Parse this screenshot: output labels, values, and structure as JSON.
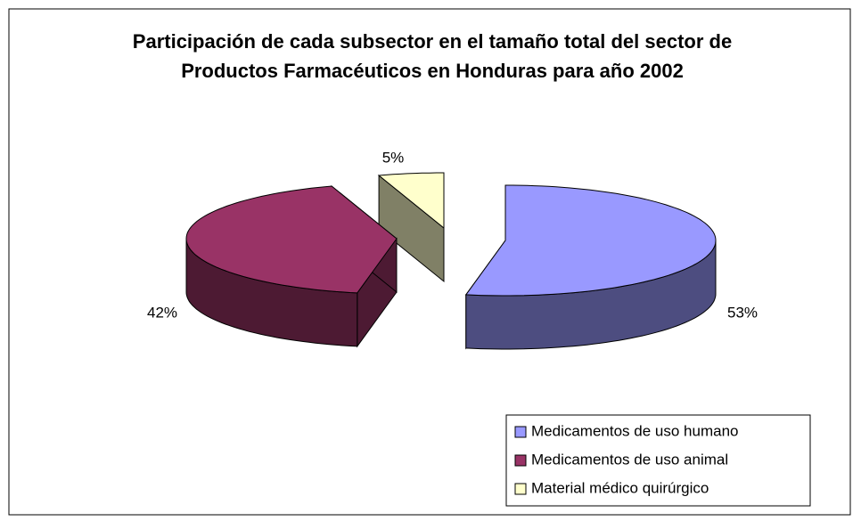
{
  "chart_data": {
    "type": "pie3d",
    "title": "Participación de cada subsector en el tamaño total del sector de Productos Farmacéuticos en Honduras para año 2002",
    "categories": [
      "Medicamentos de uso humano",
      "Medicamentos de uso animal",
      "Material médico quirúrgico"
    ],
    "values": [
      53,
      42,
      5
    ],
    "value_labels": [
      "53%",
      "42%",
      "5%"
    ],
    "colors": [
      "#9999ff",
      "#993366",
      "#ffffcc"
    ],
    "legend": "bottom-right"
  }
}
